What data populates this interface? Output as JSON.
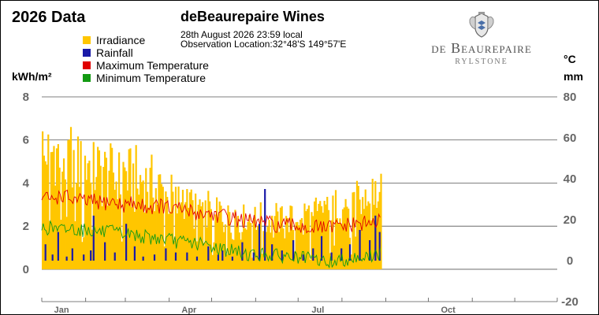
{
  "header": {
    "year_title": "2026 Data",
    "station_title": "deBeaurepaire Wines",
    "obs_date": "28th August 2026  23:59 local",
    "obs_location": "Observation Location:32°48'S 149°57'E"
  },
  "logo": {
    "name": "de Beaurepaire",
    "sub": "RYLSTONE",
    "icon": "crest-icon"
  },
  "colors": {
    "irradiance": "#ffc600",
    "rainfall": "#1a1aa8",
    "max_temp": "#e00000",
    "min_temp": "#139a13"
  },
  "chart_data": {
    "type": "bar",
    "x_axis": {
      "unit": "day of year 2026",
      "range": [
        1,
        365
      ],
      "tick_labels": [
        "Jan",
        "Apr",
        "Jul",
        "Oct"
      ],
      "tick_days": [
        15,
        105,
        196,
        288
      ]
    },
    "y_left": {
      "label": "kWh/m²",
      "range": [
        -1.5,
        8
      ],
      "ticks": [
        0,
        2,
        4,
        6,
        8
      ]
    },
    "y_right": {
      "label_top": "°C",
      "label_bottom": "mm",
      "range": [
        -20,
        80
      ],
      "ticks": [
        -20,
        0,
        20,
        40,
        60,
        80
      ]
    },
    "grid": "horizontal",
    "legend": {
      "position": "top-left",
      "entries": [
        "Irradiance",
        "Rainfall",
        "Maximum Temperature",
        "Minimum Temperature"
      ]
    },
    "last_day": 240,
    "series": [
      {
        "name": "Irradiance",
        "kind": "bar",
        "axis": "left",
        "unit": "kWh/m²",
        "weekly_average": [
          6.4,
          6.5,
          6.2,
          6.1,
          6.0,
          5.9,
          5.5,
          5.3,
          5.2,
          5.0,
          4.8,
          4.6,
          4.3,
          4.1,
          3.9,
          3.7,
          3.5,
          3.3,
          3.1,
          2.9,
          2.8,
          2.8,
          2.7,
          2.7,
          2.7,
          2.7,
          2.8,
          2.9,
          3.0,
          3.3,
          3.5,
          3.7,
          3.8,
          3.9,
          4.0
        ]
      },
      {
        "name": "Rainfall",
        "kind": "bar",
        "axis": "right",
        "unit": "mm",
        "days": [
          3,
          8,
          12,
          18,
          22,
          30,
          35,
          37,
          45,
          52,
          60,
          66,
          72,
          80,
          88,
          95,
          103,
          110,
          118,
          125,
          128,
          135,
          142,
          150,
          154,
          158,
          163,
          170,
          178,
          185,
          192,
          198,
          205,
          212,
          218,
          225,
          232,
          236,
          239
        ],
        "values": [
          8,
          3,
          14,
          2,
          6,
          3,
          5,
          22,
          9,
          4,
          18,
          7,
          2,
          3,
          6,
          4,
          4,
          2,
          7,
          3,
          5,
          2,
          9,
          4,
          18,
          35,
          8,
          5,
          10,
          3,
          6,
          12,
          4,
          6,
          8,
          15,
          10,
          22,
          14
        ]
      },
      {
        "name": "Maximum Temperature",
        "kind": "line",
        "axis": "right",
        "unit": "°C",
        "weekly_average": [
          31,
          30,
          32,
          30,
          29,
          29,
          28,
          29,
          27,
          28,
          27,
          26,
          27,
          25,
          25,
          24,
          23,
          23,
          22,
          21,
          20,
          19,
          19,
          18,
          17,
          17,
          17,
          16,
          16,
          16,
          17,
          17,
          18,
          18,
          19
        ]
      },
      {
        "name": "Minimum Temperature",
        "kind": "line",
        "axis": "right",
        "unit": "°C",
        "weekly_average": [
          16,
          16,
          15,
          16,
          15,
          15,
          14,
          14,
          13,
          13,
          12,
          11,
          11,
          10,
          9,
          9,
          8,
          7,
          6,
          5,
          4,
          3,
          3,
          3,
          2,
          2,
          1,
          1,
          0,
          -1,
          0,
          1,
          2,
          2,
          3
        ]
      }
    ]
  }
}
